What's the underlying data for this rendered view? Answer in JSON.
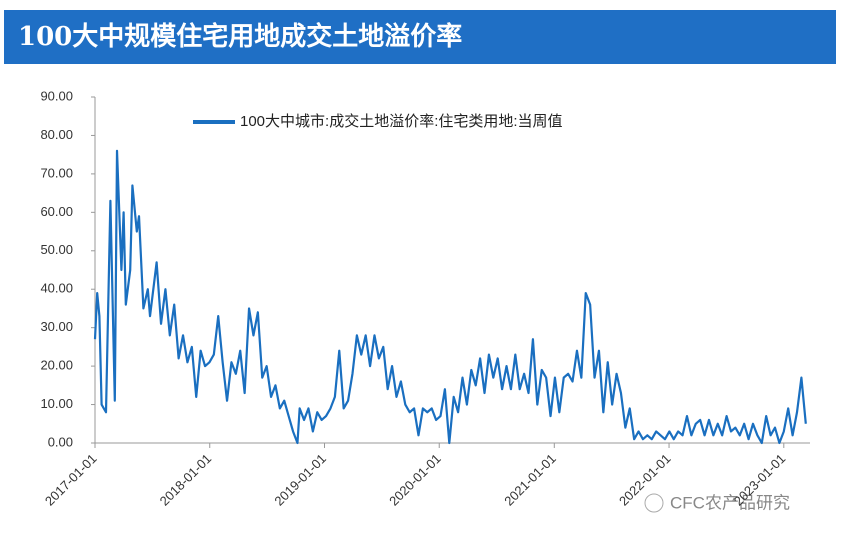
{
  "chart_data": {
    "type": "line",
    "title": "100大中规模住宅用地成交土地溢价率",
    "watermark": "CFC农产品研究",
    "x": [
      "2017-01-01",
      "2017-01-08",
      "2017-01-15",
      "2017-01-22",
      "2017-02-05",
      "2017-02-19",
      "2017-03-05",
      "2017-03-12",
      "2017-03-26",
      "2017-04-02",
      "2017-04-09",
      "2017-04-23",
      "2017-04-30",
      "2017-05-14",
      "2017-05-21",
      "2017-06-04",
      "2017-06-18",
      "2017-06-25",
      "2017-07-16",
      "2017-07-30",
      "2017-08-13",
      "2017-08-27",
      "2017-09-10",
      "2017-09-24",
      "2017-10-08",
      "2017-10-22",
      "2017-11-05",
      "2017-11-19",
      "2017-12-03",
      "2017-12-17",
      "2017-12-31",
      "2018-01-14",
      "2018-01-28",
      "2018-02-11",
      "2018-02-25",
      "2018-03-11",
      "2018-03-25",
      "2018-04-08",
      "2018-04-22",
      "2018-05-06",
      "2018-05-20",
      "2018-06-03",
      "2018-06-17",
      "2018-07-01",
      "2018-07-15",
      "2018-07-29",
      "2018-08-12",
      "2018-08-26",
      "2018-09-09",
      "2018-09-23",
      "2018-10-07",
      "2018-10-14",
      "2018-10-28",
      "2018-11-11",
      "2018-11-25",
      "2018-12-09",
      "2018-12-23",
      "2019-01-06",
      "2019-01-20",
      "2019-02-03",
      "2019-02-17",
      "2019-03-03",
      "2019-03-17",
      "2019-03-31",
      "2019-04-14",
      "2019-04-28",
      "2019-05-12",
      "2019-05-26",
      "2019-06-09",
      "2019-06-23",
      "2019-07-07",
      "2019-07-21",
      "2019-08-04",
      "2019-08-18",
      "2019-09-01",
      "2019-09-15",
      "2019-09-29",
      "2019-10-13",
      "2019-10-27",
      "2019-11-10",
      "2019-11-24",
      "2019-12-08",
      "2019-12-22",
      "2020-01-05",
      "2020-01-19",
      "2020-02-02",
      "2020-02-16",
      "2020-03-01",
      "2020-03-15",
      "2020-03-29",
      "2020-04-12",
      "2020-04-26",
      "2020-05-10",
      "2020-05-24",
      "2020-06-07",
      "2020-06-21",
      "2020-07-05",
      "2020-07-19",
      "2020-08-02",
      "2020-08-16",
      "2020-08-30",
      "2020-09-13",
      "2020-09-27",
      "2020-10-11",
      "2020-10-25",
      "2020-11-08",
      "2020-11-22",
      "2020-12-06",
      "2020-12-20",
      "2021-01-03",
      "2021-01-17",
      "2021-01-31",
      "2021-02-14",
      "2021-02-28",
      "2021-03-14",
      "2021-03-28",
      "2021-04-11",
      "2021-04-25",
      "2021-05-09",
      "2021-05-23",
      "2021-06-06",
      "2021-06-20",
      "2021-07-04",
      "2021-07-18",
      "2021-08-01",
      "2021-08-15",
      "2021-08-29",
      "2021-09-12",
      "2021-09-26",
      "2021-10-10",
      "2021-10-24",
      "2021-11-07",
      "2021-11-21",
      "2021-12-05",
      "2021-12-19",
      "2022-01-02",
      "2022-01-16",
      "2022-01-30",
      "2022-02-13",
      "2022-02-27",
      "2022-03-13",
      "2022-03-27",
      "2022-04-10",
      "2022-04-24",
      "2022-05-08",
      "2022-05-22",
      "2022-06-05",
      "2022-06-19",
      "2022-07-03",
      "2022-07-17",
      "2022-07-31",
      "2022-08-14",
      "2022-08-28",
      "2022-09-11",
      "2022-09-25",
      "2022-10-09",
      "2022-10-23",
      "2022-11-06",
      "2022-11-20",
      "2022-12-04",
      "2022-12-18",
      "2023-01-01",
      "2023-01-15",
      "2023-01-29",
      "2023-02-12",
      "2023-02-26",
      "2023-03-12"
    ],
    "series": [
      {
        "name": "100大中城市:成交土地溢价率:住宅类用地:当周值",
        "color": "#1a6fc0",
        "values": [
          27,
          39,
          33,
          10,
          8,
          63,
          11,
          76,
          45,
          60,
          36,
          45,
          67,
          55,
          59,
          35,
          40,
          33,
          47,
          31,
          40,
          28,
          36,
          22,
          28,
          21,
          25,
          12,
          24,
          20,
          21,
          23,
          33,
          21,
          11,
          21,
          18,
          24,
          13,
          35,
          28,
          34,
          17,
          20,
          12,
          15,
          9,
          11,
          7,
          3,
          0,
          9,
          6,
          9,
          3,
          8,
          6,
          7,
          9,
          12,
          24,
          9,
          11,
          18,
          28,
          23,
          28,
          20,
          28,
          22,
          25,
          14,
          20,
          12,
          16,
          10,
          8,
          9,
          2,
          9,
          8,
          9,
          6,
          7,
          14,
          0,
          12,
          8,
          17,
          10,
          19,
          15,
          22,
          13,
          23,
          17,
          22,
          14,
          20,
          14,
          23,
          14,
          18,
          13,
          27,
          10,
          19,
          17,
          7,
          17,
          8,
          17,
          18,
          16,
          24,
          17,
          39,
          36,
          17,
          24,
          8,
          21,
          10,
          18,
          13,
          4,
          9,
          1,
          3,
          1,
          2,
          1,
          3,
          2,
          1,
          3,
          1,
          3,
          2,
          7,
          2,
          5,
          6,
          2,
          6,
          2,
          5,
          2,
          7,
          3,
          4,
          2,
          5,
          1,
          5,
          2,
          0,
          7,
          2,
          4,
          0,
          3,
          9,
          2,
          8,
          17,
          5
        ]
      }
    ],
    "xlim": [
      "2017-01-01",
      "2023-03-19"
    ],
    "xticks": [
      "2017-01-01",
      "2018-01-01",
      "2019-01-01",
      "2020-01-01",
      "2021-01-01",
      "2022-01-01",
      "2023-01-01"
    ],
    "ylim": [
      0,
      90
    ],
    "yticks": [
      {
        "value": 0,
        "label": "0.00"
      },
      {
        "value": 10,
        "label": "10.00"
      },
      {
        "value": 20,
        "label": "20.00"
      },
      {
        "value": 30,
        "label": "30.00"
      },
      {
        "value": 40,
        "label": "40.00"
      },
      {
        "value": 50,
        "label": "50.00"
      },
      {
        "value": 60,
        "label": "60.00"
      },
      {
        "value": 70,
        "label": "70.00"
      },
      {
        "value": 80,
        "label": "80.00"
      },
      {
        "value": 90,
        "label": "90.00"
      }
    ],
    "grid": false,
    "title_color": "#1f6fc5"
  }
}
